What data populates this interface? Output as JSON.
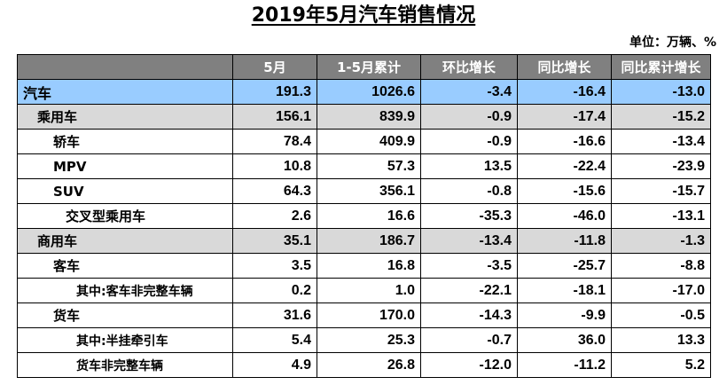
{
  "title": "2019年5月汽车销售情况",
  "unit_note": "单位：万辆、%",
  "table": {
    "headers": [
      "",
      "5月",
      "1-5月累计",
      "环比增长",
      "同比增长",
      "同比累计增长"
    ],
    "rows": [
      {
        "label": "汽车",
        "level": 0,
        "values": [
          "191.3",
          "1026.6",
          "-3.4",
          "-16.4",
          "-13.0"
        ]
      },
      {
        "label": "乘用车",
        "level": 1,
        "values": [
          "156.1",
          "839.9",
          "-0.9",
          "-17.4",
          "-15.2"
        ]
      },
      {
        "label": "轿车",
        "level": 2,
        "values": [
          "78.4",
          "409.9",
          "-0.9",
          "-16.6",
          "-13.4"
        ]
      },
      {
        "label": "MPV",
        "level": 2,
        "values": [
          "10.8",
          "57.3",
          "13.5",
          "-22.4",
          "-23.9"
        ]
      },
      {
        "label": "SUV",
        "level": 2,
        "values": [
          "64.3",
          "356.1",
          "-0.8",
          "-15.6",
          "-15.7"
        ]
      },
      {
        "label": "交叉型乘用车",
        "level": 3,
        "values": [
          "2.6",
          "16.6",
          "-35.3",
          "-46.0",
          "-13.1"
        ]
      },
      {
        "label": "商用车",
        "level": 1,
        "values": [
          "35.1",
          "186.7",
          "-13.4",
          "-11.8",
          "-1.3"
        ]
      },
      {
        "label": "客车",
        "level": 2,
        "values": [
          "3.5",
          "16.8",
          "-3.5",
          "-25.7",
          "-8.8"
        ]
      },
      {
        "label": "其中:客车非完整车辆",
        "level": 4,
        "values": [
          "0.2",
          "1.0",
          "-22.1",
          "-18.1",
          "-17.0"
        ]
      },
      {
        "label": "货车",
        "level": 2,
        "values": [
          "31.6",
          "170.0",
          "-14.3",
          "-9.9",
          "-0.5"
        ]
      },
      {
        "label": "其中:半挂牵引车",
        "level": 4,
        "values": [
          "5.4",
          "25.3",
          "-0.7",
          "36.0",
          "13.3"
        ]
      },
      {
        "label": "货车非完整车辆",
        "level": 4,
        "values": [
          "4.9",
          "26.8",
          "-12.0",
          "-11.2",
          "5.2"
        ]
      }
    ]
  },
  "colors": {
    "header_bg": "#808080",
    "total_row_bg": "#99ccff",
    "category_row_bg": "#d9d9d9"
  }
}
